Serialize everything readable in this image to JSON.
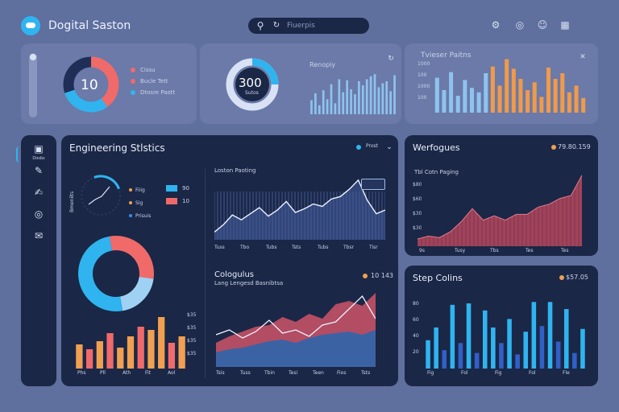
{
  "app": {
    "title": "Dogital Saston",
    "search_placeholder": "Fiuerpis",
    "header_icons": [
      "settings-icon",
      "globe-icon",
      "user-icon",
      "grid-icon"
    ]
  },
  "top_cards": {
    "donut10": {
      "value": "10",
      "legend": [
        {
          "label": "Cissu",
          "color": "#f06a6a"
        },
        {
          "label": "Bucle Tett",
          "color": "#f06a6a"
        },
        {
          "label": "Dtosre Paott",
          "color": "#32b6f0"
        }
      ]
    },
    "gauge300": {
      "value": "300",
      "sub": "Sutos",
      "bars_title": "Renopiy"
    },
    "bars_card": {
      "title": "Tvieser Paitns",
      "ylabels": [
        "1000",
        "100",
        "1000",
        "100"
      ]
    }
  },
  "sidebar": {
    "items": [
      {
        "name": "sidebar-item-dashboard",
        "icon": "dashboard-icon",
        "label": "Dosbs"
      },
      {
        "name": "sidebar-item-tools",
        "icon": "tools-icon",
        "label": ""
      },
      {
        "name": "sidebar-item-edit",
        "icon": "edit-icon",
        "label": ""
      },
      {
        "name": "sidebar-item-globe",
        "icon": "globe-icon",
        "label": ""
      },
      {
        "name": "sidebar-item-chat",
        "icon": "chat-icon",
        "label": ""
      }
    ]
  },
  "engineering": {
    "title": "Engineering Stlstics",
    "dropdown_label": "Prost",
    "gauge_side_label": "Bmeniits",
    "gauge_legend": [
      {
        "label": "Fiiig",
        "color": "#f0a050"
      },
      {
        "label": "Sig",
        "color": "#f0a050"
      },
      {
        "label": "Prisuis",
        "color": "#3a8af0"
      }
    ],
    "bars_legend": [
      {
        "value": "90",
        "color": "#2fb4f0"
      },
      {
        "value": "10",
        "color": "#f06a6a"
      }
    ],
    "line_chart_title": "Loston Paoting",
    "line_x_labels": [
      "Tuss",
      "Tbo",
      "Tubs",
      "Tsts",
      "Tubs",
      "Tbsr",
      "Tisr"
    ],
    "small_bar_ylabels": [
      "$35",
      "$35",
      "$35",
      "$35"
    ],
    "small_bar_xlabels": [
      "Phs",
      "Pll",
      "Ath",
      "Fit",
      "Aol"
    ],
    "area_title": "Cologulus",
    "area_subtitle": "Lang Lengesd Basnibtsa",
    "area_value": "10 143",
    "area_x_labels": [
      "Tsis",
      "Tuss",
      "Tbin",
      "Tesi",
      "Teen",
      "Fios",
      "Tsts"
    ]
  },
  "werfogues": {
    "title": "Werfogues",
    "value": "79.80.159",
    "subtitle": "Tbl Cotn Paging",
    "ylabels": [
      "$80",
      "$60",
      "$30",
      "$30"
    ],
    "xlabels": [
      "9s",
      "Tusy",
      "Tbs",
      "Tes",
      "Tes"
    ]
  },
  "step": {
    "title": "Step Colins",
    "value": "$57.05",
    "ylabels": [
      "80",
      "60",
      "40",
      "20"
    ],
    "xlabels": [
      "Fig",
      "Fol",
      "Fig",
      "Fol",
      "Fle"
    ]
  },
  "chart_data": [
    {
      "type": "pie",
      "title": "",
      "values": [
        40,
        30,
        30
      ],
      "colors": [
        "#f06a6a",
        "#2fb4f0",
        "#1f2e57"
      ]
    },
    {
      "type": "bar",
      "title": "Renopiy",
      "values": [
        28,
        42,
        18,
        48,
        30,
        60,
        22,
        70,
        44,
        68,
        50,
        40,
        66,
        58,
        70,
        76,
        80,
        54,
        62,
        66,
        46,
        78
      ]
    },
    {
      "type": "bar",
      "title": "Tvieser Paitns",
      "values": [
        62,
        40,
        72,
        30,
        58,
        44,
        36,
        70,
        82,
        48,
        95,
        78,
        60,
        40,
        54,
        28,
        80,
        60,
        70,
        36,
        48,
        26
      ],
      "colors": [
        "#8ec3ef",
        "#8ec3ef",
        "#8ec3ef",
        "#8ec3ef",
        "#8ec3ef",
        "#8ec3ef",
        "#8ec3ef",
        "#8ec3ef",
        "#f09a4a",
        "#f09a4a",
        "#f09a4a",
        "#f09a4a",
        "#f09a4a",
        "#f09a4a",
        "#f09a4a",
        "#f09a4a",
        "#f09a4a",
        "#f09a4a",
        "#f09a4a",
        "#f09a4a",
        "#f09a4a",
        "#f09a4a"
      ]
    },
    {
      "type": "line",
      "title": "Loston Paoting",
      "values": [
        10,
        22,
        38,
        30,
        40,
        50,
        36,
        46,
        60,
        42,
        48,
        56,
        52,
        64,
        68,
        80,
        95,
        62,
        40,
        46
      ]
    },
    {
      "type": "pie",
      "title": "",
      "values": [
        30,
        20,
        50
      ],
      "colors": [
        "#f06a6a",
        "#9fd1f3",
        "#2fb4f0"
      ]
    },
    {
      "type": "bar",
      "title": "",
      "values": [
        30,
        24,
        34,
        44,
        26,
        40,
        52,
        48,
        64,
        32,
        40
      ],
      "colors": [
        "#f0a050",
        "#f06a6a",
        "#f0a050",
        "#f06a6a",
        "#f0a050",
        "#f0a050",
        "#f06a6a",
        "#f0a050",
        "#f0a050",
        "#f06a6a",
        "#f0a050"
      ]
    },
    {
      "type": "area",
      "title": "Cologulus",
      "series": [
        {
          "values": [
            30,
            38,
            44,
            50,
            52,
            62,
            56,
            66,
            60,
            78,
            82,
            76,
            92
          ]
        },
        {
          "values": [
            18,
            22,
            24,
            28,
            32,
            34,
            30,
            36,
            40,
            42,
            44,
            40,
            46
          ]
        }
      ],
      "line": [
        40,
        46,
        36,
        44,
        58,
        42,
        46,
        38,
        52,
        56,
        72,
        88,
        60
      ]
    },
    {
      "type": "area",
      "title": "Tbl Cotn Paging",
      "values": [
        10,
        14,
        12,
        20,
        34,
        52,
        36,
        42,
        36,
        44,
        44,
        54,
        58,
        66,
        70,
        98
      ]
    },
    {
      "type": "bar",
      "title": "Step Colins",
      "values": [
        40,
        58,
        26,
        90,
        36,
        92,
        22,
        82,
        58,
        36,
        70,
        20,
        52,
        94,
        60,
        94,
        38,
        84,
        22,
        56
      ],
      "colors": [
        "#2fb4f0",
        "#2fb4f0",
        "#3060c8",
        "#2fb4f0",
        "#3060c8",
        "#2fb4f0",
        "#3060c8",
        "#2fb4f0",
        "#2fb4f0",
        "#3060c8",
        "#2fb4f0",
        "#3060c8",
        "#2fb4f0",
        "#2fb4f0",
        "#3060c8",
        "#2fb4f0",
        "#3060c8",
        "#2fb4f0",
        "#3060c8",
        "#2fb4f0"
      ]
    }
  ]
}
